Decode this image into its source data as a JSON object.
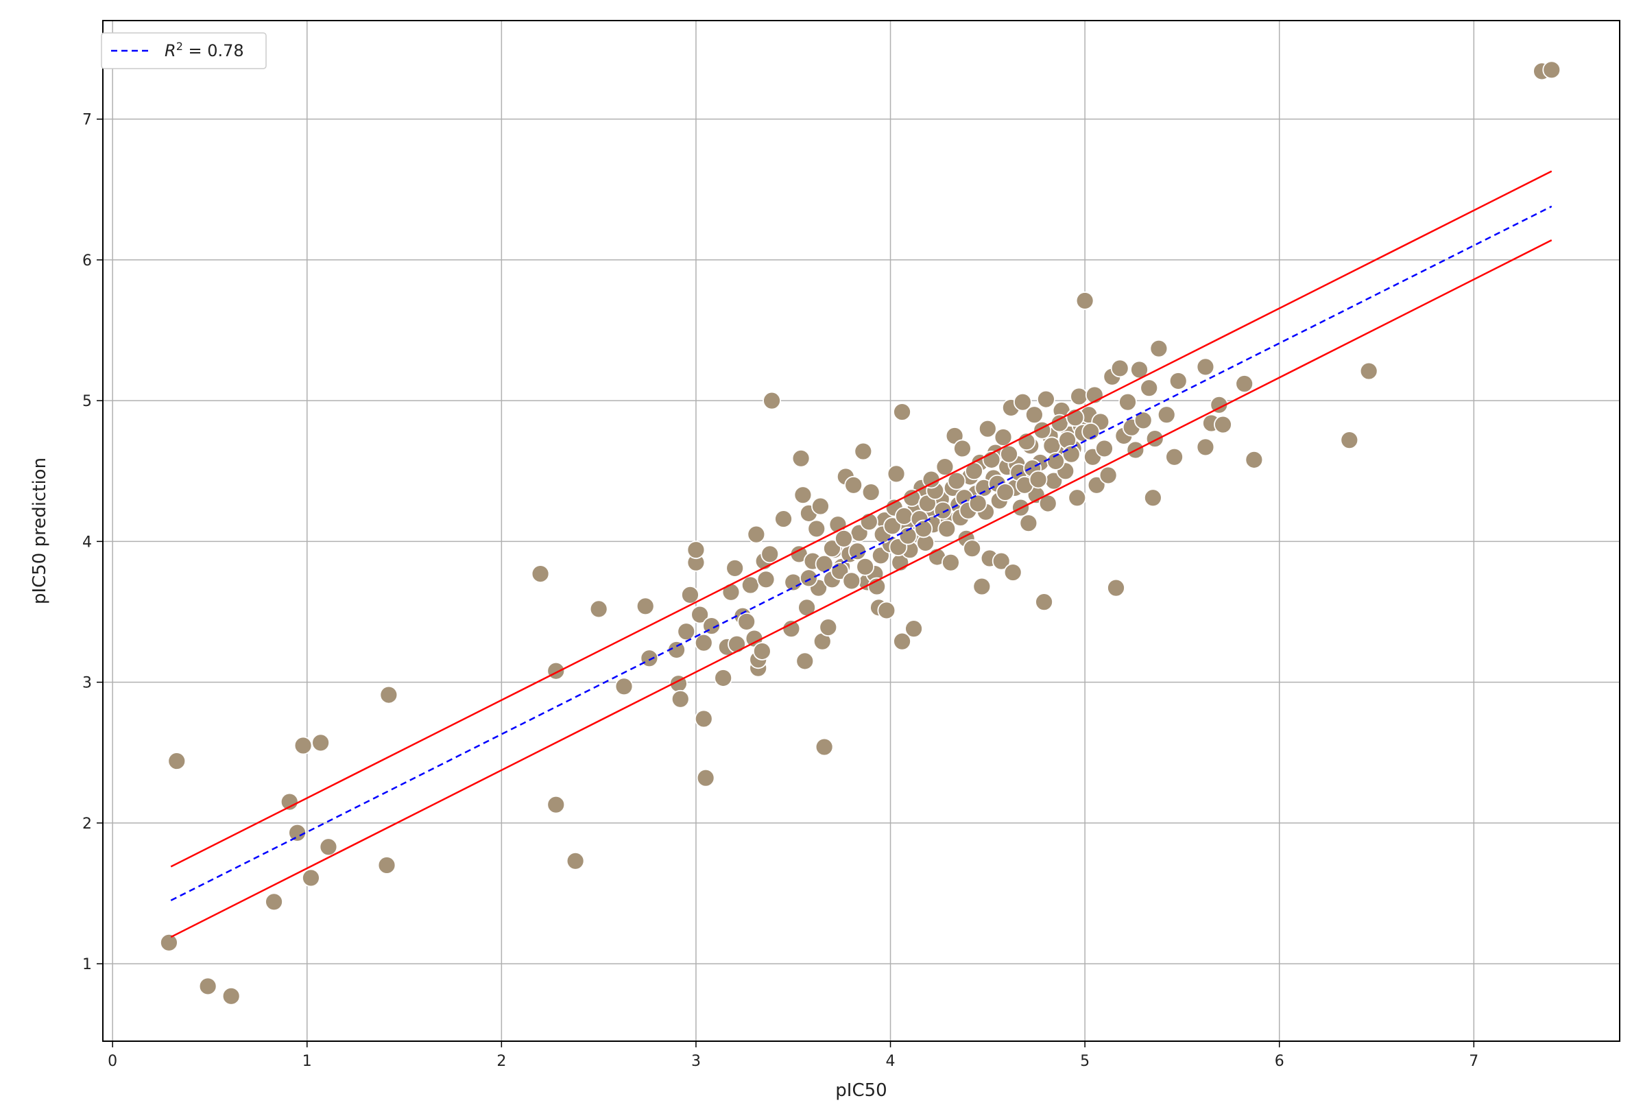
{
  "chart_data": {
    "type": "scatter",
    "xlabel": "pIC50",
    "ylabel": "pIC50 prediction",
    "xlim": [
      -0.05,
      7.75
    ],
    "ylim": [
      0.45,
      7.7
    ],
    "xticks": [
      "0",
      "1",
      "2",
      "3",
      "4",
      "5",
      "6",
      "7"
    ],
    "yticks": [
      "1",
      "2",
      "3",
      "4",
      "5",
      "6",
      "7"
    ],
    "grid": true,
    "legend": {
      "placement": "top-left",
      "entries": [
        {
          "label_main": "R",
          "label_sup": "2",
          "label_rest": " = 0.78",
          "style": "dashed",
          "color": "#0000ff"
        }
      ]
    },
    "fit_line": {
      "x": [
        0.3,
        7.4
      ],
      "y": [
        1.45,
        6.38
      ],
      "color": "#0000ff",
      "style": "dashed"
    },
    "upper_band": {
      "x": [
        0.3,
        7.4
      ],
      "y": [
        1.69,
        6.63
      ],
      "color": "#ff0000"
    },
    "lower_band": {
      "x": [
        0.3,
        7.4
      ],
      "y": [
        1.19,
        6.14
      ],
      "color": "#ff0000"
    },
    "point_color": "#a59277",
    "points": [
      [
        0.29,
        1.15
      ],
      [
        0.33,
        2.44
      ],
      [
        0.49,
        0.84
      ],
      [
        0.61,
        0.77
      ],
      [
        0.83,
        1.44
      ],
      [
        0.91,
        2.15
      ],
      [
        0.95,
        1.93
      ],
      [
        0.98,
        2.55
      ],
      [
        1.02,
        1.61
      ],
      [
        1.07,
        2.57
      ],
      [
        1.11,
        1.83
      ],
      [
        1.41,
        1.7
      ],
      [
        1.42,
        2.91
      ],
      [
        2.2,
        3.77
      ],
      [
        2.28,
        3.08
      ],
      [
        2.28,
        2.13
      ],
      [
        2.38,
        1.73
      ],
      [
        2.5,
        3.52
      ],
      [
        2.63,
        2.97
      ],
      [
        2.74,
        3.54
      ],
      [
        2.76,
        3.17
      ],
      [
        2.9,
        3.23
      ],
      [
        2.91,
        2.99
      ],
      [
        2.92,
        2.88
      ],
      [
        2.95,
        3.36
      ],
      [
        2.97,
        3.62
      ],
      [
        3.0,
        3.85
      ],
      [
        3.0,
        3.94
      ],
      [
        3.02,
        3.48
      ],
      [
        3.04,
        3.28
      ],
      [
        3.04,
        2.74
      ],
      [
        3.05,
        2.32
      ],
      [
        3.08,
        3.4
      ],
      [
        3.14,
        3.03
      ],
      [
        3.16,
        3.25
      ],
      [
        3.18,
        3.64
      ],
      [
        3.2,
        3.81
      ],
      [
        3.21,
        3.27
      ],
      [
        3.24,
        3.47
      ],
      [
        3.26,
        3.43
      ],
      [
        3.28,
        3.69
      ],
      [
        3.3,
        3.31
      ],
      [
        3.31,
        4.05
      ],
      [
        3.32,
        3.1
      ],
      [
        3.32,
        3.16
      ],
      [
        3.34,
        3.22
      ],
      [
        3.35,
        3.86
      ],
      [
        3.36,
        3.73
      ],
      [
        3.38,
        3.91
      ],
      [
        3.39,
        5.0
      ],
      [
        3.45,
        4.16
      ],
      [
        3.49,
        3.38
      ],
      [
        3.5,
        3.71
      ],
      [
        3.53,
        3.91
      ],
      [
        3.54,
        4.59
      ],
      [
        3.55,
        4.33
      ],
      [
        3.56,
        3.15
      ],
      [
        3.57,
        3.53
      ],
      [
        3.58,
        4.2
      ],
      [
        3.6,
        3.86
      ],
      [
        3.62,
        4.09
      ],
      [
        3.63,
        3.67
      ],
      [
        3.64,
        4.25
      ],
      [
        3.65,
        3.29
      ],
      [
        3.66,
        2.54
      ],
      [
        3.68,
        3.39
      ],
      [
        3.7,
        3.73
      ],
      [
        3.71,
        3.94
      ],
      [
        3.73,
        4.12
      ],
      [
        3.75,
        3.82
      ],
      [
        3.77,
        4.46
      ],
      [
        3.79,
        3.91
      ],
      [
        3.81,
        4.4
      ],
      [
        3.84,
        4.06
      ],
      [
        3.86,
        4.64
      ],
      [
        3.88,
        3.71
      ],
      [
        3.9,
        4.35
      ],
      [
        3.92,
        3.77
      ],
      [
        3.94,
        3.53
      ],
      [
        3.95,
        3.9
      ],
      [
        3.97,
        4.15
      ],
      [
        3.98,
        3.51
      ],
      [
        4.0,
        3.98
      ],
      [
        4.02,
        4.24
      ],
      [
        4.03,
        4.48
      ],
      [
        4.05,
        3.85
      ],
      [
        4.06,
        4.92
      ],
      [
        4.06,
        3.29
      ],
      [
        4.08,
        4.1
      ],
      [
        4.1,
        3.94
      ],
      [
        4.12,
        3.38
      ],
      [
        4.13,
        4.25
      ],
      [
        4.14,
        4.05
      ],
      [
        4.16,
        4.38
      ],
      [
        4.18,
        3.99
      ],
      [
        4.2,
        4.2
      ],
      [
        4.22,
        4.12
      ],
      [
        4.24,
        3.89
      ],
      [
        4.26,
        4.3
      ],
      [
        4.28,
        4.53
      ],
      [
        4.3,
        4.15
      ],
      [
        4.31,
        3.85
      ],
      [
        4.32,
        4.38
      ],
      [
        4.33,
        4.75
      ],
      [
        4.35,
        4.26
      ],
      [
        4.37,
        4.66
      ],
      [
        4.39,
        4.02
      ],
      [
        4.41,
        4.46
      ],
      [
        4.42,
        3.95
      ],
      [
        4.44,
        4.34
      ],
      [
        4.46,
        4.56
      ],
      [
        4.47,
        3.68
      ],
      [
        4.49,
        4.21
      ],
      [
        4.5,
        4.8
      ],
      [
        4.51,
        3.88
      ],
      [
        4.53,
        4.45
      ],
      [
        4.54,
        4.63
      ],
      [
        4.56,
        4.29
      ],
      [
        4.57,
        3.86
      ],
      [
        4.58,
        4.74
      ],
      [
        4.6,
        4.53
      ],
      [
        4.62,
        4.95
      ],
      [
        4.63,
        3.78
      ],
      [
        4.64,
        4.38
      ],
      [
        4.65,
        4.55
      ],
      [
        4.67,
        4.24
      ],
      [
        4.68,
        4.99
      ],
      [
        4.7,
        4.47
      ],
      [
        4.71,
        4.13
      ],
      [
        4.72,
        4.68
      ],
      [
        4.74,
        4.9
      ],
      [
        4.75,
        4.33
      ],
      [
        4.77,
        4.56
      ],
      [
        4.79,
        3.57
      ],
      [
        4.8,
        5.01
      ],
      [
        4.81,
        4.27
      ],
      [
        4.82,
        4.75
      ],
      [
        4.84,
        4.43
      ],
      [
        4.86,
        4.62
      ],
      [
        4.88,
        4.93
      ],
      [
        4.9,
        4.5
      ],
      [
        4.92,
        4.76
      ],
      [
        4.94,
        4.66
      ],
      [
        4.96,
        4.31
      ],
      [
        4.97,
        5.03
      ],
      [
        4.98,
        4.82
      ],
      [
        5.0,
        5.71
      ],
      [
        5.02,
        4.9
      ],
      [
        5.04,
        4.6
      ],
      [
        5.05,
        5.04
      ],
      [
        5.06,
        4.4
      ],
      [
        5.08,
        4.85
      ],
      [
        5.1,
        4.66
      ],
      [
        5.12,
        4.47
      ],
      [
        5.14,
        5.17
      ],
      [
        5.16,
        3.67
      ],
      [
        5.18,
        5.23
      ],
      [
        5.2,
        4.75
      ],
      [
        5.22,
        4.99
      ],
      [
        5.24,
        4.81
      ],
      [
        5.26,
        4.65
      ],
      [
        5.28,
        5.22
      ],
      [
        5.3,
        4.86
      ],
      [
        5.33,
        5.09
      ],
      [
        5.35,
        4.31
      ],
      [
        5.36,
        4.73
      ],
      [
        5.38,
        5.37
      ],
      [
        5.42,
        4.9
      ],
      [
        5.46,
        4.6
      ],
      [
        5.48,
        5.14
      ],
      [
        5.62,
        4.67
      ],
      [
        5.62,
        5.24
      ],
      [
        5.65,
        4.84
      ],
      [
        5.69,
        4.97
      ],
      [
        5.71,
        4.83
      ],
      [
        5.82,
        5.12
      ],
      [
        5.87,
        4.58
      ],
      [
        6.36,
        4.72
      ],
      [
        6.46,
        5.21
      ],
      [
        7.35,
        7.34
      ],
      [
        7.4,
        7.35
      ],
      [
        3.7,
        3.95
      ],
      [
        3.76,
        4.02
      ],
      [
        3.83,
        3.93
      ],
      [
        3.89,
        4.14
      ],
      [
        3.96,
        4.05
      ],
      [
        4.01,
        4.11
      ],
      [
        4.07,
        4.18
      ],
      [
        4.11,
        4.31
      ],
      [
        4.15,
        4.16
      ],
      [
        4.19,
        4.27
      ],
      [
        4.23,
        4.36
      ],
      [
        4.27,
        4.22
      ],
      [
        4.34,
        4.43
      ],
      [
        4.38,
        4.31
      ],
      [
        4.43,
        4.5
      ],
      [
        4.48,
        4.38
      ],
      [
        4.52,
        4.58
      ],
      [
        4.55,
        4.41
      ],
      [
        4.61,
        4.62
      ],
      [
        4.66,
        4.49
      ],
      [
        4.7,
        4.71
      ],
      [
        4.73,
        4.52
      ],
      [
        4.78,
        4.79
      ],
      [
        4.83,
        4.68
      ],
      [
        4.87,
        4.84
      ],
      [
        4.91,
        4.72
      ],
      [
        4.95,
        4.88
      ],
      [
        4.99,
        4.77
      ],
      [
        3.58,
        3.74
      ],
      [
        3.66,
        3.84
      ],
      [
        3.74,
        3.79
      ],
      [
        3.8,
        3.72
      ],
      [
        3.87,
        3.82
      ],
      [
        3.93,
        3.68
      ],
      [
        4.04,
        3.96
      ],
      [
        4.09,
        4.04
      ],
      [
        4.17,
        4.09
      ],
      [
        4.21,
        4.44
      ],
      [
        4.29,
        4.09
      ],
      [
        4.36,
        4.17
      ],
      [
        4.4,
        4.22
      ],
      [
        4.45,
        4.27
      ],
      [
        4.59,
        4.35
      ],
      [
        4.69,
        4.4
      ],
      [
        4.76,
        4.44
      ],
      [
        4.85,
        4.57
      ],
      [
        4.93,
        4.62
      ],
      [
        5.03,
        4.78
      ]
    ]
  }
}
